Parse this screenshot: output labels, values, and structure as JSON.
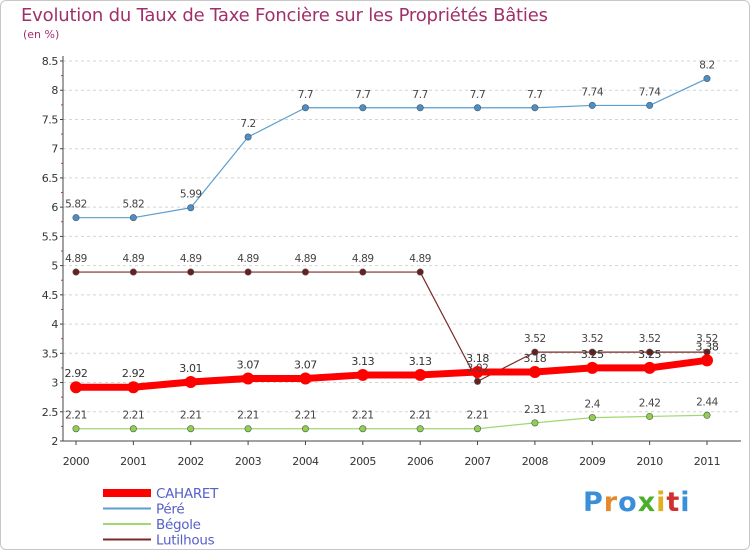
{
  "title": "Evolution du Taux de Taxe Foncière sur les Propriétés Bâties",
  "unit": "(en %)",
  "brand": "Proxiti",
  "brand_colors": [
    "#3a8fd9",
    "#e58a2a",
    "#3a8fd9",
    "#4caf2a",
    "#e0b020",
    "#d03030",
    "#3a8fd9"
  ],
  "chart_data": {
    "type": "line",
    "x": [
      "2000",
      "2001",
      "2002",
      "2003",
      "2004",
      "2005",
      "2006",
      "2007",
      "2008",
      "2009",
      "2010",
      "2011"
    ],
    "ylim": [
      2,
      8.5
    ],
    "yticks": [
      "2",
      "2.5",
      "3",
      "3.5",
      "4",
      "4.5",
      "5",
      "5.5",
      "6",
      "6.5",
      "7",
      "7.5",
      "8",
      "8.5"
    ],
    "grid": "horizontal dashed",
    "series": [
      {
        "name": "CAHARET",
        "color": "#ff0000",
        "values": [
          2.92,
          2.92,
          3.01,
          3.07,
          3.07,
          3.13,
          3.13,
          3.18,
          3.18,
          3.25,
          3.25,
          3.38
        ],
        "labels": [
          "2.92",
          "2.92",
          "3.01",
          "3.07",
          "3.07",
          "3.13",
          "3.13",
          "3.18",
          "3.18",
          "3.25",
          "3.25",
          "3.38"
        ]
      },
      {
        "name": "Péré",
        "color": "#5a9fd0",
        "values": [
          5.82,
          5.82,
          5.99,
          7.2,
          7.7,
          7.7,
          7.7,
          7.7,
          7.7,
          7.74,
          7.74,
          8.2
        ],
        "labels": [
          "5.82",
          "5.82",
          "5.99",
          "7.2",
          "7.7",
          "7.7",
          "7.7",
          "7.7",
          "7.7",
          "7.74",
          "7.74",
          "8.2"
        ]
      },
      {
        "name": "Bégole",
        "color": "#a0d870",
        "values": [
          2.21,
          2.21,
          2.21,
          2.21,
          2.21,
          2.21,
          2.21,
          2.21,
          2.31,
          2.4,
          2.42,
          2.44
        ],
        "labels": [
          "2.21",
          "2.21",
          "2.21",
          "2.21",
          "2.21",
          "2.21",
          "2.21",
          "2.21",
          "2.31",
          "2.4",
          "2.42",
          "2.44"
        ]
      },
      {
        "name": "Lutilhous",
        "color": "#7a2a2a",
        "values": [
          4.89,
          4.89,
          4.89,
          4.89,
          4.89,
          4.89,
          4.89,
          3.02,
          3.52,
          3.52,
          3.52,
          3.52
        ],
        "labels": [
          "4.89",
          "4.89",
          "4.89",
          "4.89",
          "4.89",
          "4.89",
          "4.89",
          "3.02",
          "3.52",
          "3.52",
          "3.52",
          "3.52"
        ]
      }
    ]
  }
}
